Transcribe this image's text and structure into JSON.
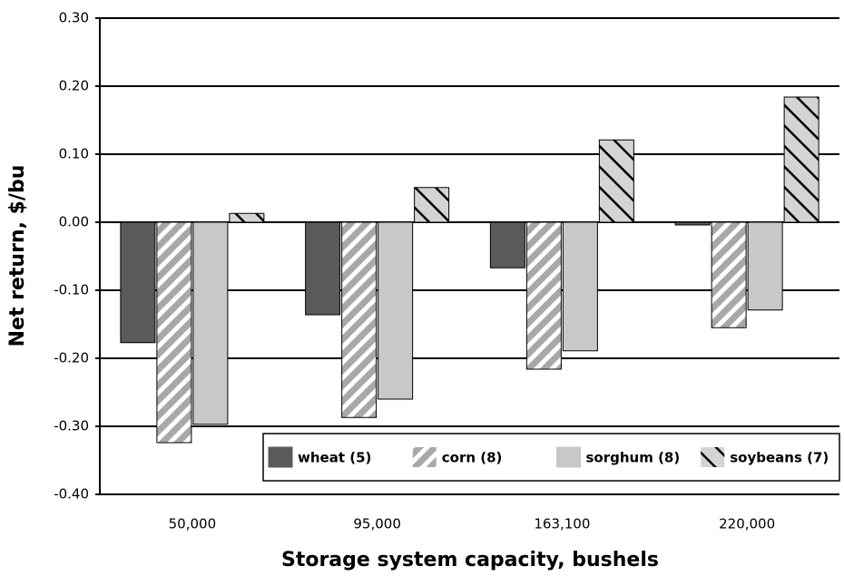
{
  "chart_data": {
    "type": "bar",
    "y_label": "Net return, $/bu",
    "x_label": "Storage system capacity, bushels",
    "categories": [
      "50,000",
      "95,000",
      "163,100",
      "220,000"
    ],
    "series": [
      {
        "name": "wheat (5)",
        "color": "#5a5a5a",
        "hatch": "none",
        "values": [
          -0.177,
          -0.136,
          -0.067,
          -0.004
        ]
      },
      {
        "name": "corn (8)",
        "color": "#b4b4b4",
        "hatch": "forward",
        "values": [
          -0.324,
          -0.287,
          -0.216,
          -0.155
        ]
      },
      {
        "name": "sorghum (8)",
        "color": "#c8c8c8",
        "hatch": "none",
        "values": [
          -0.297,
          -0.26,
          -0.189,
          -0.129
        ]
      },
      {
        "name": "soybeans (7)",
        "color": "#d4d4d4",
        "hatch": "backward",
        "values": [
          0.013,
          0.051,
          0.121,
          0.184
        ]
      }
    ],
    "ylim": [
      -0.4,
      0.3
    ],
    "yticks": [
      {
        "value": -0.4,
        "label": "-0.40"
      },
      {
        "value": -0.3,
        "label": "-0.30"
      },
      {
        "value": -0.2,
        "label": "-0.20"
      },
      {
        "value": -0.1,
        "label": "-0.10"
      },
      {
        "value": 0,
        "label": "0.00"
      },
      {
        "value": 0.1,
        "label": "0.10"
      },
      {
        "value": 0.2,
        "label": "0.20"
      },
      {
        "value": 0.3,
        "label": "0.30"
      }
    ],
    "grid": true,
    "legend": "lower right"
  }
}
